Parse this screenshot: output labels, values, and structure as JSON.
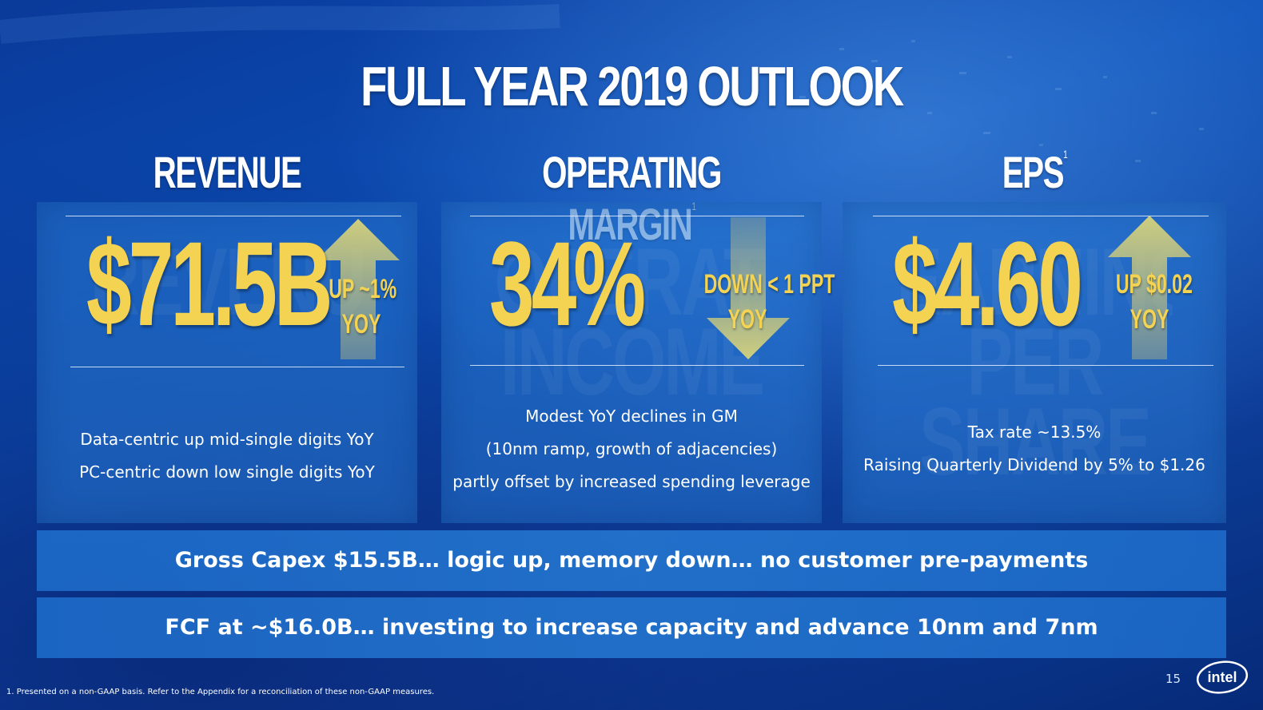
{
  "slide": {
    "title": "FULL YEAR 2019 OUTLOOK",
    "page_number": "15",
    "footnote": "1. Presented on a non-GAAP basis. Refer to the Appendix for a reconciliation of these non-GAAP measures.",
    "logo_text": "intel"
  },
  "columns": [
    {
      "heading": "REVENUE",
      "footnote_mark": "",
      "ghost_text": "REVENUE",
      "value": "$71.5B",
      "delta_line1": "UP ~1%",
      "delta_line2": "YOY",
      "direction": "up",
      "desc_line1": "Data-centric up mid-single digits YoY",
      "desc_line2": "PC-centric down low single digits YoY",
      "desc_line3": ""
    },
    {
      "heading": "OPERATING MARGIN",
      "footnote_mark": "1",
      "ghost_text": "OPERATING INCOME",
      "value": "34%",
      "delta_line1": "DOWN < 1 PPT",
      "delta_line2": "YOY",
      "direction": "down",
      "desc_line1": "Modest YoY declines in GM",
      "desc_line2": "(10nm ramp, growth of adjacencies)",
      "desc_line3": "partly offset by increased spending leverage"
    },
    {
      "heading": "EPS",
      "footnote_mark": "1",
      "ghost_text": "EARNINGS PER SHARE",
      "value": "$4.60",
      "delta_line1": "UP $0.02",
      "delta_line2": "YOY",
      "direction": "up",
      "desc_line1": "Tax rate ~13.5%",
      "desc_line2": "Raising Quarterly Dividend by 5% to $1.26",
      "desc_line3": ""
    }
  ],
  "bars": [
    "Gross Capex $15.5B… logic up, memory down… no customer pre-payments",
    "FCF at ~$16.0B… investing to increase capacity and advance 10nm and 7nm"
  ],
  "colors": {
    "accent_yellow": "#f4d352",
    "background_blue": "#0b4fb8",
    "panel_blue": "#2878d2",
    "arrow_fill": "#c9c98a"
  }
}
